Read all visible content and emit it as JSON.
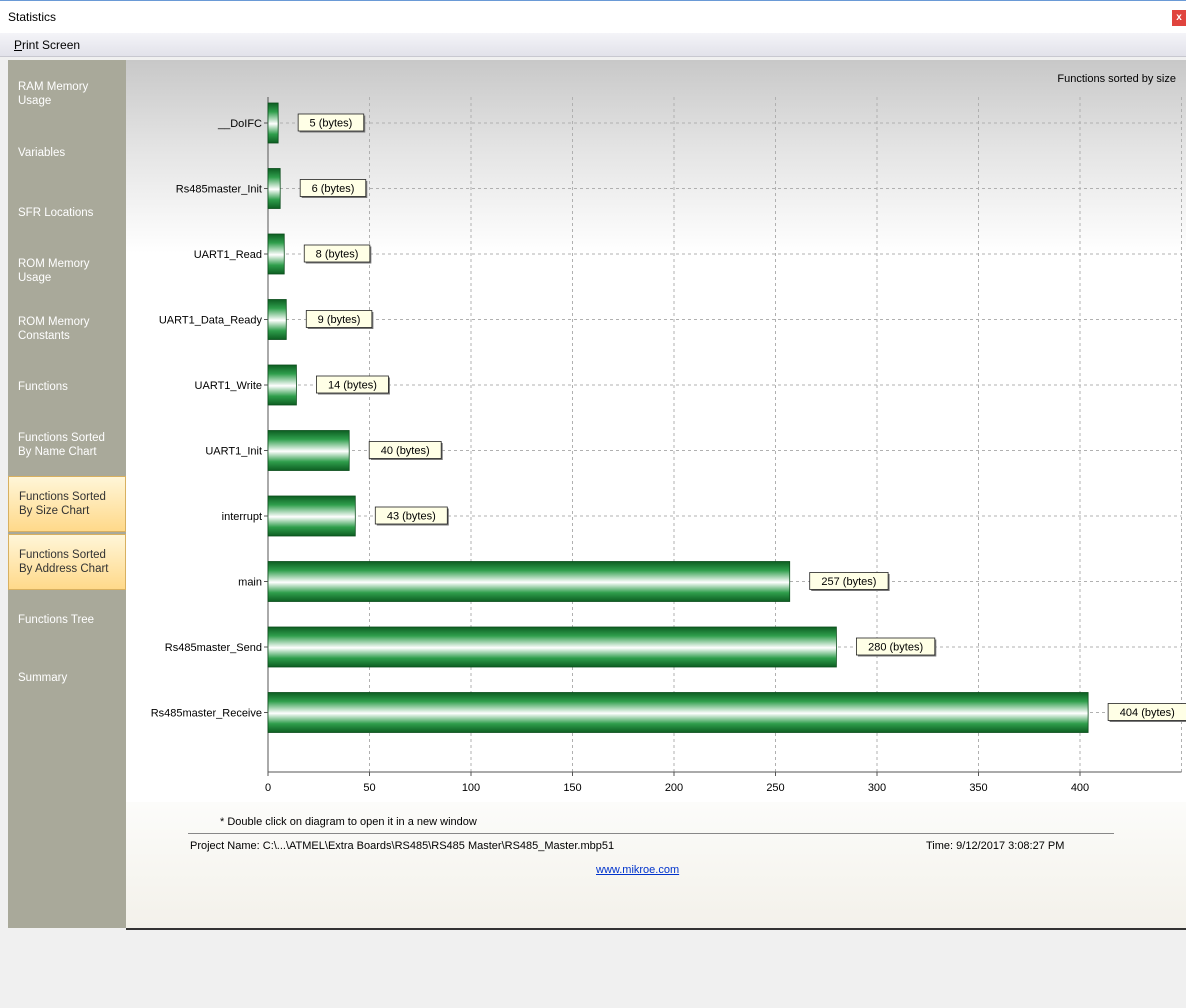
{
  "window": {
    "title": "Statistics",
    "close_glyph": "x"
  },
  "menu": {
    "print_screen": "Print Screen"
  },
  "sidebar": {
    "items": [
      {
        "label": "RAM Memory\nUsage"
      },
      {
        "label": "Variables"
      },
      {
        "label": "SFR Locations"
      },
      {
        "label": "ROM Memory\nUsage"
      },
      {
        "label": "ROM Memory\nConstants"
      },
      {
        "label": "Functions"
      },
      {
        "label": "Functions Sorted\nBy Name Chart"
      },
      {
        "label": "Functions Sorted\nBy Size Chart",
        "active": true
      },
      {
        "label": "Functions Sorted\nBy Address Chart"
      },
      {
        "label": "Functions Tree"
      },
      {
        "label": "Summary"
      }
    ]
  },
  "chart_title": "Functions sorted by size",
  "chart_data": {
    "type": "bar",
    "orientation": "horizontal",
    "title": "Functions sorted by size",
    "categories": [
      "__DoIFC",
      "Rs485master_Init",
      "UART1_Read",
      "UART1_Data_Ready",
      "UART1_Write",
      "UART1_Init",
      "interrupt",
      "main",
      "Rs485master_Send",
      "Rs485master_Receive"
    ],
    "values": [
      5,
      6,
      8,
      9,
      14,
      40,
      43,
      257,
      280,
      404
    ],
    "value_label_suffix": " (bytes)",
    "xticks": [
      0,
      50,
      100,
      150,
      200,
      250,
      300,
      350,
      400
    ],
    "xlim": [
      0,
      450
    ],
    "grid": true,
    "bar_color": "#1e8a3a"
  },
  "footer": {
    "note": "* Double click on diagram to open it in a new window",
    "project": "Project Name: C:\\...\\ATMEL\\Extra Boards\\RS485\\RS485 Master\\RS485_Master.mbp51",
    "time": "Time: 9/12/2017 3:08:27 PM",
    "link": "www.mikroe.com"
  }
}
